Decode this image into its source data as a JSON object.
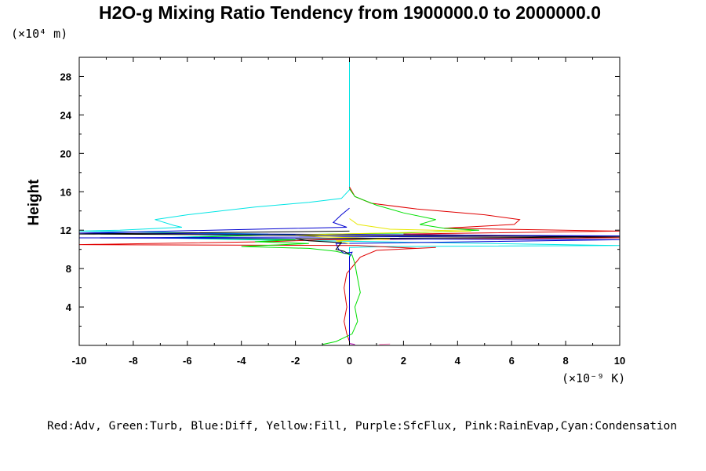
{
  "chart_data": {
    "type": "line",
    "title": "H2O-g Mixing Ratio Tendency from 1900000.0 to 2000000.0",
    "ylabel": "Height",
    "y_unit": "(×10⁴ m)",
    "x_unit": "(×10⁻⁹ K)",
    "xlim": [
      -10,
      10
    ],
    "ylim": [
      0,
      30
    ],
    "x_ticks": [
      -10,
      -8,
      -6,
      -4,
      -2,
      0,
      2,
      4,
      6,
      8,
      10
    ],
    "y_ticks": [
      4,
      8,
      12,
      16,
      20,
      24,
      28
    ],
    "grid": false,
    "legend_text": "Red:Adv, Green:Turb, Blue:Diff, Yellow:Fill, Purple:SfcFlux, Pink:RainEvap,Cyan:Condensation",
    "series": [
      {
        "name": "Condensation",
        "color": "#00e5e5",
        "points": [
          [
            0,
            30
          ],
          [
            0,
            16.2
          ],
          [
            -0.3,
            15.3
          ],
          [
            -1.5,
            14.9
          ],
          [
            -3.5,
            14.4
          ],
          [
            -6,
            13.6
          ],
          [
            -7.2,
            13.1
          ],
          [
            -6.5,
            12.5
          ],
          [
            -6.2,
            12.3
          ],
          [
            -8.5,
            12
          ],
          [
            -10,
            11.9
          ],
          [
            -3,
            11.6
          ],
          [
            -7,
            11.2
          ],
          [
            -4,
            11.0
          ],
          [
            -1,
            10.9
          ],
          [
            1,
            10.8
          ],
          [
            10,
            10.4
          ],
          [
            1.5,
            10.3
          ],
          [
            0,
            10.2
          ],
          [
            0,
            0.3
          ]
        ]
      },
      {
        "name": "Adv",
        "color": "#e00000",
        "points": [
          [
            0,
            16.5
          ],
          [
            0.2,
            15.5
          ],
          [
            0.8,
            14.8
          ],
          [
            2.5,
            14.2
          ],
          [
            5,
            13.6
          ],
          [
            6.3,
            13.1
          ],
          [
            6.1,
            12.6
          ],
          [
            3.5,
            12.2
          ],
          [
            10,
            11.9
          ],
          [
            2,
            11.6
          ],
          [
            10,
            11.2
          ],
          [
            -1,
            11.0
          ],
          [
            -3,
            10.8
          ],
          [
            -10,
            10.5
          ],
          [
            0.3,
            10.4
          ],
          [
            2.5,
            10.1
          ],
          [
            3.2,
            10.2
          ],
          [
            1,
            9.9
          ],
          [
            0.4,
            9.2
          ],
          [
            0.2,
            8.5
          ],
          [
            -0.1,
            7.5
          ],
          [
            -0.2,
            6
          ],
          [
            -0.1,
            4
          ],
          [
            -0.2,
            2.5
          ],
          [
            -0.1,
            1.2
          ],
          [
            0,
            0.4
          ]
        ]
      },
      {
        "name": "Turb",
        "color": "#00e000",
        "points": [
          [
            0,
            16.3
          ],
          [
            0.2,
            15.5
          ],
          [
            1,
            14.6
          ],
          [
            2,
            13.8
          ],
          [
            3.2,
            13.1
          ],
          [
            2.6,
            12.6
          ],
          [
            3.5,
            12.2
          ],
          [
            4.8,
            12.0
          ],
          [
            2,
            11.7
          ],
          [
            -3,
            11.5
          ],
          [
            -6.5,
            11.2
          ],
          [
            -2,
            11.0
          ],
          [
            -3.5,
            10.8
          ],
          [
            -1.5,
            10.6
          ],
          [
            -4,
            10.3
          ],
          [
            -1.5,
            10.1
          ],
          [
            -0.5,
            9.8
          ],
          [
            0.1,
            9.4
          ],
          [
            0.2,
            8.5
          ],
          [
            0.3,
            7
          ],
          [
            0.4,
            5.5
          ],
          [
            0.2,
            4
          ],
          [
            0.3,
            2.5
          ],
          [
            0.1,
            1.2
          ],
          [
            -0.5,
            0.4
          ],
          [
            -1,
            0.1
          ]
        ]
      },
      {
        "name": "Diff",
        "color": "#0000d0",
        "points": [
          [
            0,
            14.3
          ],
          [
            -0.3,
            13.6
          ],
          [
            -0.6,
            12.8
          ],
          [
            -0.1,
            12.3
          ],
          [
            -10,
            11.7
          ],
          [
            10,
            11.4
          ],
          [
            -10,
            11.2
          ],
          [
            10,
            11.0
          ],
          [
            -0.5,
            10.6
          ],
          [
            -0.4,
            10.0
          ],
          [
            -0.2,
            9.6
          ],
          [
            0.1,
            9.7
          ],
          [
            0,
            9.2
          ],
          [
            0,
            0.5
          ]
        ]
      },
      {
        "name": "Fill",
        "color": "#e8e800",
        "points": [
          [
            0,
            13.2
          ],
          [
            0.3,
            12.6
          ],
          [
            1.5,
            12.1
          ],
          [
            4.5,
            11.9
          ],
          [
            -2,
            11.5
          ],
          [
            -1,
            11.3
          ],
          [
            1.5,
            11.1
          ],
          [
            -0.5,
            10.9
          ],
          [
            0,
            10.6
          ]
        ]
      },
      {
        "name": "SfcFlux",
        "color": "#b000b0",
        "points": [
          [
            0,
            0.2
          ],
          [
            0.2,
            0.1
          ]
        ]
      },
      {
        "name": "RainEvap",
        "color": "#ff80c0",
        "points": [
          [
            1.1,
            0.1
          ],
          [
            1.5,
            0.15
          ]
        ]
      },
      {
        "name": "",
        "color": "#000000",
        "points": [
          [
            0,
            11.9
          ],
          [
            -10,
            11.6
          ],
          [
            10,
            11.3
          ],
          [
            -2,
            11.1
          ],
          [
            -1.5,
            10.9
          ],
          [
            -0.3,
            10.7
          ],
          [
            -0.5,
            10.0
          ],
          [
            -0.2,
            9.8
          ],
          [
            0,
            9.5
          ]
        ]
      }
    ]
  }
}
